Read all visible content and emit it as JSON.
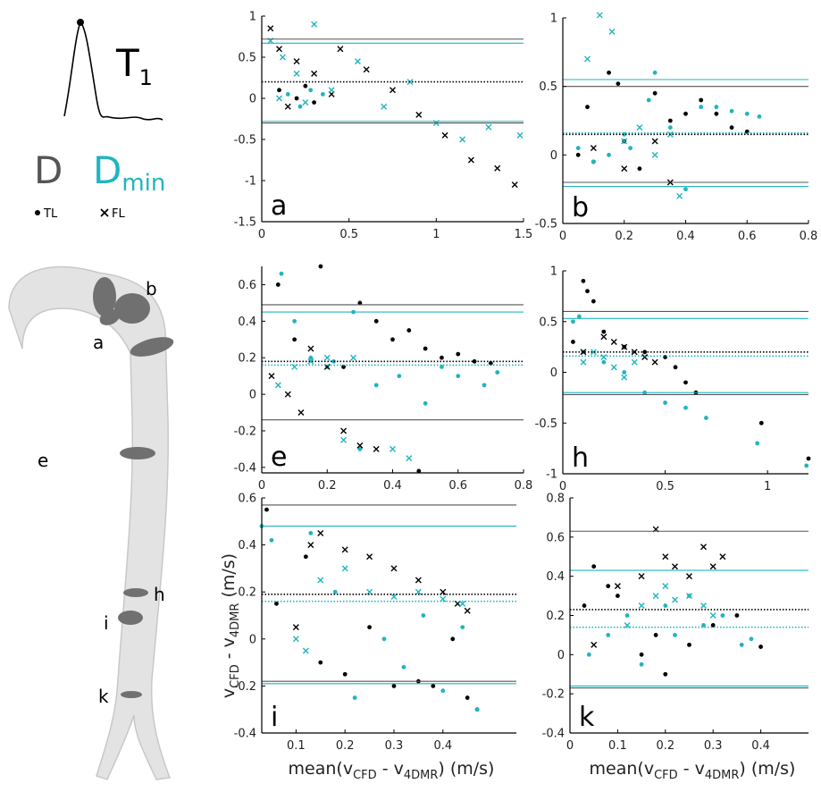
{
  "chart_data": [
    {
      "type": "scatter",
      "annotation": "a",
      "xlim": [
        0,
        1.5
      ],
      "ylim": [
        -1.5,
        1
      ],
      "xticks": [
        0,
        0.5,
        1,
        1.5
      ],
      "yticks": [
        -1.5,
        -1,
        -0.5,
        0,
        0.5,
        1
      ],
      "reference_lines": [
        {
          "value": 0.72,
          "color": "#555555",
          "style": "solid"
        },
        {
          "value": -0.3,
          "color": "#555555",
          "style": "solid"
        },
        {
          "value": 0.2,
          "color": "#000000",
          "style": "dotted"
        },
        {
          "value": 0.67,
          "color": "#1fb5c0",
          "style": "solid"
        },
        {
          "value": -0.28,
          "color": "#1fb5c0",
          "style": "solid"
        }
      ],
      "series": [
        {
          "color": "#1fb5c0",
          "marker": "dot",
          "x": [
            0.15,
            0.22,
            0.35,
            0.28
          ],
          "values": [
            0.05,
            -0.1,
            0.05,
            0.1
          ]
        },
        {
          "color": "#000000",
          "marker": "dot",
          "x": [
            0.1,
            0.2,
            0.3,
            0.25
          ],
          "values": [
            0.1,
            0.0,
            -0.05,
            0.15
          ]
        },
        {
          "color": "#000000",
          "marker": "cross",
          "x": [
            0.05,
            0.1,
            0.2,
            0.3,
            0.45,
            0.6,
            0.75,
            0.9,
            1.05,
            1.2,
            1.35,
            1.45,
            0.15,
            0.4
          ],
          "values": [
            0.85,
            0.6,
            0.45,
            0.3,
            0.6,
            0.35,
            0.1,
            -0.2,
            -0.45,
            -0.75,
            -0.85,
            -1.05,
            -0.1,
            0.05
          ]
        },
        {
          "color": "#1fb5c0",
          "marker": "cross",
          "x": [
            0.05,
            0.12,
            0.2,
            0.3,
            0.4,
            0.55,
            0.7,
            0.85,
            1.0,
            1.15,
            1.3,
            1.48,
            0.25,
            0.1
          ],
          "values": [
            0.7,
            0.5,
            0.3,
            0.9,
            0.1,
            0.45,
            -0.1,
            0.2,
            -0.3,
            -0.5,
            -0.35,
            -0.45,
            -0.05,
            0.0
          ]
        }
      ]
    },
    {
      "type": "scatter",
      "annotation": "b",
      "xlim": [
        0,
        0.8
      ],
      "ylim": [
        -0.5,
        1
      ],
      "xticks": [
        0,
        0.2,
        0.4,
        0.6,
        0.8
      ],
      "yticks": [
        -0.5,
        0,
        0.5,
        1
      ],
      "reference_lines": [
        {
          "value": 0.5,
          "color": "#555555",
          "style": "solid"
        },
        {
          "value": -0.2,
          "color": "#555555",
          "style": "solid"
        },
        {
          "value": 0.15,
          "color": "#000000",
          "style": "dotted"
        },
        {
          "value": 0.55,
          "color": "#1fb5c0",
          "style": "solid"
        },
        {
          "value": -0.23,
          "color": "#1fb5c0",
          "style": "solid"
        },
        {
          "value": 0.16,
          "color": "#1fb5c0",
          "style": "dotted"
        }
      ],
      "series": [
        {
          "color": "#000000",
          "marker": "dot",
          "x": [
            0.05,
            0.1,
            0.15,
            0.2,
            0.25,
            0.3,
            0.35,
            0.4,
            0.45,
            0.5,
            0.55,
            0.6,
            0.18,
            0.08
          ],
          "values": [
            0.0,
            -0.05,
            0.6,
            0.1,
            -0.1,
            0.45,
            0.25,
            0.3,
            0.4,
            0.3,
            0.2,
            0.17,
            0.52,
            0.35
          ]
        },
        {
          "color": "#1fb5c0",
          "marker": "dot",
          "x": [
            0.05,
            0.1,
            0.15,
            0.2,
            0.3,
            0.35,
            0.4,
            0.45,
            0.5,
            0.55,
            0.6,
            0.64,
            0.28,
            0.22
          ],
          "values": [
            0.05,
            -0.05,
            0.0,
            0.15,
            0.6,
            0.2,
            -0.25,
            0.35,
            0.35,
            0.32,
            0.3,
            0.28,
            0.4,
            0.05
          ]
        },
        {
          "color": "#1fb5c0",
          "marker": "cross",
          "x": [
            0.08,
            0.12,
            0.16,
            0.2,
            0.25,
            0.3,
            0.35,
            0.38
          ],
          "values": [
            0.7,
            1.02,
            0.9,
            0.1,
            0.2,
            0.0,
            0.15,
            -0.3
          ]
        },
        {
          "color": "#000000",
          "marker": "cross",
          "x": [
            0.1,
            0.2,
            0.3,
            0.35
          ],
          "values": [
            0.05,
            -0.1,
            0.1,
            -0.2
          ]
        }
      ]
    },
    {
      "type": "scatter",
      "annotation": "e",
      "xlim": [
        0,
        0.8
      ],
      "ylim": [
        -0.43,
        0.7
      ],
      "xticks": [
        0,
        0.2,
        0.4,
        0.6,
        0.8
      ],
      "yticks": [
        -0.4,
        -0.2,
        0,
        0.2,
        0.4,
        0.6
      ],
      "reference_lines": [
        {
          "value": 0.49,
          "color": "#555555",
          "style": "solid"
        },
        {
          "value": -0.14,
          "color": "#555555",
          "style": "solid"
        },
        {
          "value": 0.18,
          "color": "#000000",
          "style": "dotted"
        },
        {
          "value": 0.45,
          "color": "#1fb5c0",
          "style": "solid"
        },
        {
          "value": 0.16,
          "color": "#1fb5c0",
          "style": "dotted"
        }
      ],
      "series": [
        {
          "color": "#000000",
          "marker": "dot",
          "x": [
            0.05,
            0.1,
            0.18,
            0.25,
            0.3,
            0.35,
            0.4,
            0.45,
            0.5,
            0.55,
            0.6,
            0.65,
            0.7,
            0.48
          ],
          "values": [
            0.6,
            0.3,
            0.7,
            0.15,
            0.5,
            0.4,
            0.3,
            0.35,
            0.25,
            0.2,
            0.22,
            0.18,
            0.17,
            -0.42
          ]
        },
        {
          "color": "#1fb5c0",
          "marker": "dot",
          "x": [
            0.06,
            0.1,
            0.15,
            0.2,
            0.22,
            0.28,
            0.35,
            0.42,
            0.5,
            0.55,
            0.6,
            0.68,
            0.72,
            0.3
          ],
          "values": [
            0.66,
            0.4,
            0.2,
            0.15,
            0.18,
            0.45,
            0.05,
            0.1,
            -0.05,
            0.15,
            0.1,
            0.05,
            0.12,
            -0.3
          ]
        },
        {
          "color": "#000000",
          "marker": "cross",
          "x": [
            0.03,
            0.08,
            0.12,
            0.15,
            0.2,
            0.25,
            0.3,
            0.35
          ],
          "values": [
            0.1,
            0.0,
            -0.1,
            0.25,
            0.15,
            -0.2,
            -0.28,
            -0.3
          ]
        },
        {
          "color": "#1fb5c0",
          "marker": "cross",
          "x": [
            0.05,
            0.1,
            0.15,
            0.2,
            0.25,
            0.28,
            0.4,
            0.45
          ],
          "values": [
            0.05,
            0.15,
            0.18,
            0.2,
            -0.25,
            0.2,
            -0.3,
            -0.35
          ]
        }
      ]
    },
    {
      "type": "scatter",
      "annotation": "h",
      "xlim": [
        0,
        1.2
      ],
      "ylim": [
        -1,
        1
      ],
      "xticks": [
        0,
        0.5,
        1
      ],
      "yticks": [
        -1,
        -0.5,
        0,
        0.5,
        1
      ],
      "reference_lines": [
        {
          "value": 0.6,
          "color": "#555555",
          "style": "solid"
        },
        {
          "value": -0.22,
          "color": "#555555",
          "style": "solid"
        },
        {
          "value": 0.2,
          "color": "#000000",
          "style": "dotted"
        },
        {
          "value": 0.53,
          "color": "#1fb5c0",
          "style": "solid"
        },
        {
          "value": -0.2,
          "color": "#1fb5c0",
          "style": "solid"
        },
        {
          "value": 0.16,
          "color": "#1fb5c0",
          "style": "dotted"
        }
      ],
      "series": [
        {
          "color": "#000000",
          "marker": "dot",
          "x": [
            0.05,
            0.1,
            0.15,
            0.2,
            0.3,
            0.4,
            0.5,
            0.55,
            0.6,
            0.65,
            0.97,
            1.2,
            0.12
          ],
          "values": [
            0.3,
            0.9,
            0.7,
            0.4,
            0.25,
            0.2,
            0.15,
            0.05,
            -0.1,
            -0.2,
            -0.5,
            -0.85,
            0.8
          ]
        },
        {
          "color": "#1fb5c0",
          "marker": "dot",
          "x": [
            0.05,
            0.1,
            0.2,
            0.3,
            0.4,
            0.5,
            0.6,
            0.7,
            0.95,
            1.19,
            0.08
          ],
          "values": [
            0.5,
            0.2,
            0.1,
            0.0,
            -0.2,
            -0.3,
            -0.35,
            -0.45,
            -0.7,
            -0.92,
            0.55
          ]
        },
        {
          "color": "#000000",
          "marker": "cross",
          "x": [
            0.1,
            0.2,
            0.25,
            0.3,
            0.35,
            0.4,
            0.45
          ],
          "values": [
            0.2,
            0.35,
            0.3,
            0.25,
            0.2,
            0.15,
            0.1
          ]
        },
        {
          "color": "#1fb5c0",
          "marker": "cross",
          "x": [
            0.1,
            0.15,
            0.2,
            0.25,
            0.3,
            0.35
          ],
          "values": [
            0.1,
            0.2,
            0.15,
            0.05,
            -0.05,
            0.1
          ]
        }
      ]
    },
    {
      "type": "scatter",
      "annotation": "i",
      "xlim": [
        0.03,
        0.55
      ],
      "ylim": [
        -0.4,
        0.6
      ],
      "xticks": [
        0.1,
        0.2,
        0.3,
        0.4
      ],
      "yticks": [
        -0.4,
        -0.2,
        0,
        0.2,
        0.4,
        0.6
      ],
      "reference_lines": [
        {
          "value": 0.57,
          "color": "#555555",
          "style": "solid"
        },
        {
          "value": -0.18,
          "color": "#555555",
          "style": "solid"
        },
        {
          "value": 0.19,
          "color": "#000000",
          "style": "dotted"
        },
        {
          "value": 0.48,
          "color": "#1fb5c0",
          "style": "solid"
        },
        {
          "value": -0.19,
          "color": "#1fb5c0",
          "style": "solid"
        },
        {
          "value": 0.16,
          "color": "#1fb5c0",
          "style": "dotted"
        }
      ],
      "series": [
        {
          "color": "#000000",
          "marker": "dot",
          "x": [
            0.04,
            0.06,
            0.12,
            0.15,
            0.2,
            0.25,
            0.3,
            0.35,
            0.38,
            0.42,
            0.45,
            0.47
          ],
          "values": [
            0.55,
            0.15,
            0.35,
            -0.1,
            -0.15,
            0.05,
            -0.2,
            -0.18,
            -0.2,
            0.0,
            -0.25,
            -0.3
          ]
        },
        {
          "color": "#1fb5c0",
          "marker": "dot",
          "x": [
            0.03,
            0.05,
            0.13,
            0.18,
            0.22,
            0.28,
            0.32,
            0.36,
            0.4,
            0.44,
            0.47
          ],
          "values": [
            0.48,
            0.42,
            0.45,
            0.2,
            -0.25,
            0.0,
            -0.12,
            0.1,
            -0.22,
            0.05,
            -0.3
          ]
        },
        {
          "color": "#000000",
          "marker": "cross",
          "x": [
            0.13,
            0.15,
            0.2,
            0.25,
            0.3,
            0.35,
            0.4,
            0.43,
            0.45,
            0.1
          ],
          "values": [
            0.4,
            0.45,
            0.38,
            0.35,
            0.3,
            0.25,
            0.2,
            0.15,
            0.12,
            0.05
          ]
        },
        {
          "color": "#1fb5c0",
          "marker": "cross",
          "x": [
            0.1,
            0.15,
            0.2,
            0.25,
            0.3,
            0.35,
            0.4,
            0.44,
            0.12
          ],
          "values": [
            0.0,
            0.25,
            0.3,
            0.2,
            0.18,
            0.2,
            0.17,
            0.15,
            -0.05
          ]
        }
      ]
    },
    {
      "type": "scatter",
      "annotation": "k",
      "xlim": [
        0,
        0.5
      ],
      "ylim": [
        -0.4,
        0.8
      ],
      "xticks": [
        0,
        0.1,
        0.2,
        0.3,
        0.4
      ],
      "yticks": [
        -0.4,
        -0.2,
        0,
        0.2,
        0.4,
        0.6,
        0.8
      ],
      "reference_lines": [
        {
          "value": 0.63,
          "color": "#555555",
          "style": "solid"
        },
        {
          "value": -0.17,
          "color": "#555555",
          "style": "solid"
        },
        {
          "value": 0.23,
          "color": "#000000",
          "style": "dotted"
        },
        {
          "value": 0.43,
          "color": "#1fb5c0",
          "style": "solid"
        },
        {
          "value": -0.16,
          "color": "#1fb5c0",
          "style": "solid"
        },
        {
          "value": 0.14,
          "color": "#1fb5c0",
          "style": "dotted"
        }
      ],
      "series": [
        {
          "color": "#000000",
          "marker": "dot",
          "x": [
            0.03,
            0.05,
            0.1,
            0.15,
            0.18,
            0.2,
            0.25,
            0.3,
            0.35,
            0.4,
            0.08
          ],
          "values": [
            0.25,
            0.45,
            0.3,
            0.0,
            0.1,
            -0.1,
            0.05,
            0.15,
            0.2,
            0.04,
            0.35
          ]
        },
        {
          "color": "#1fb5c0",
          "marker": "dot",
          "x": [
            0.04,
            0.08,
            0.12,
            0.15,
            0.2,
            0.22,
            0.25,
            0.28,
            0.32,
            0.36,
            0.38
          ],
          "values": [
            0.0,
            0.1,
            0.2,
            -0.05,
            0.25,
            0.1,
            0.3,
            0.15,
            0.2,
            0.05,
            0.08
          ]
        },
        {
          "color": "#000000",
          "marker": "cross",
          "x": [
            0.05,
            0.1,
            0.15,
            0.18,
            0.2,
            0.22,
            0.25,
            0.28,
            0.3,
            0.32
          ],
          "values": [
            0.05,
            0.35,
            0.4,
            0.64,
            0.5,
            0.45,
            0.4,
            0.55,
            0.45,
            0.5
          ]
        },
        {
          "color": "#1fb5c0",
          "marker": "cross",
          "x": [
            0.12,
            0.15,
            0.18,
            0.2,
            0.22,
            0.25,
            0.28,
            0.3
          ],
          "values": [
            0.15,
            0.25,
            0.3,
            0.35,
            0.28,
            0.3,
            0.25,
            0.2
          ]
        }
      ]
    }
  ],
  "figure": {
    "waveform_label": [
      "T",
      "1"
    ],
    "legend": {
      "D": "D",
      "D_min": [
        "D",
        "min"
      ],
      "TL": "TL",
      "FL": "FL"
    },
    "aorta_labels": [
      "a",
      "b",
      "e",
      "h",
      "i",
      "k"
    ],
    "y_label": [
      "v",
      "CFD",
      " - v",
      "4DMR",
      " (m/s)"
    ],
    "x_label": [
      "mean(v",
      "CFD",
      " - v",
      "4DMR",
      ") (m/s)"
    ]
  }
}
